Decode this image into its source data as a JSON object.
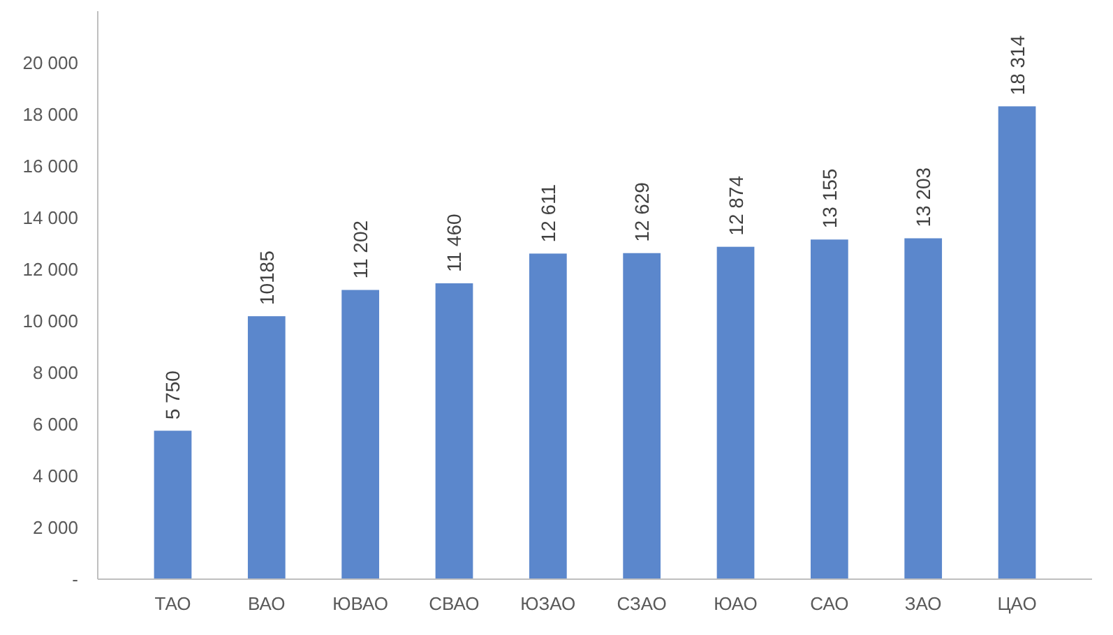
{
  "chart_data": {
    "type": "bar",
    "categories": [
      "ТАО",
      "ВАО",
      "ЮВАО",
      "СВАО",
      "ЮЗАО",
      "СЗАО",
      "ЮАО",
      "САО",
      "ЗАО",
      "ЦАО"
    ],
    "values": [
      5750,
      10185,
      11202,
      11460,
      12611,
      12629,
      12874,
      13155,
      13203,
      18314
    ],
    "value_labels": [
      "5 750",
      "10185",
      "11 202",
      "11 460",
      "12 611",
      "12 629",
      "12 874",
      "13 155",
      "13 203",
      "18 314"
    ],
    "color": "#5b87cc",
    "ylim": [
      0,
      22000
    ],
    "yticks": [
      {
        "value": 0,
        "label": "-"
      },
      {
        "value": 2000,
        "label": "2 000"
      },
      {
        "value": 4000,
        "label": "4 000"
      },
      {
        "value": 6000,
        "label": "6 000"
      },
      {
        "value": 8000,
        "label": "8 000"
      },
      {
        "value": 10000,
        "label": "10 000"
      },
      {
        "value": 12000,
        "label": "12 000"
      },
      {
        "value": 14000,
        "label": "14 000"
      },
      {
        "value": 16000,
        "label": "16 000"
      },
      {
        "value": 18000,
        "label": "18 000"
      },
      {
        "value": 20000,
        "label": "20 000"
      }
    ],
    "grid": false
  }
}
